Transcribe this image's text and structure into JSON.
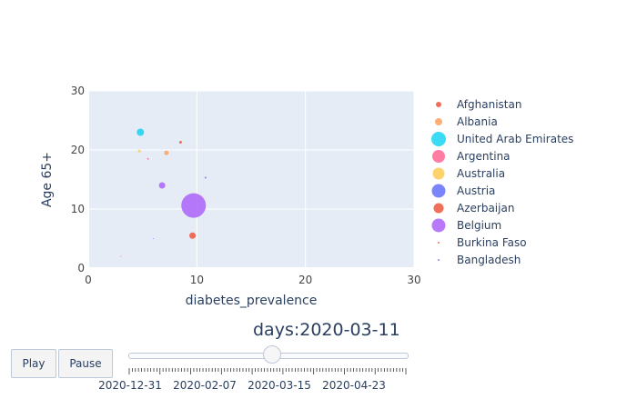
{
  "chart_data": {
    "type": "scatter",
    "xlabel": "diabetes_prevalence",
    "ylabel": "Age 65+",
    "xlim": [
      0,
      30
    ],
    "ylim": [
      0,
      30
    ],
    "x_ticks": [
      0,
      10,
      20,
      30
    ],
    "y_ticks": [
      0,
      10,
      20,
      30
    ],
    "grid": true,
    "legend_position": "right",
    "background_color": "#e5ecf6",
    "series": [
      {
        "name": "Afghanistan",
        "color": "#ef553b",
        "x": 8.5,
        "y": 21.3,
        "size": 3
      },
      {
        "name": "Albania",
        "color": "#ffa15a",
        "x": 7.2,
        "y": 19.5,
        "size": 5
      },
      {
        "name": "United Arab Emirates",
        "color": "#19d3f3",
        "x": 4.8,
        "y": 23.0,
        "size": 8
      },
      {
        "name": "Argentina",
        "color": "#ff6692",
        "x": 5.5,
        "y": 18.5,
        "size": 2
      },
      {
        "name": "Australia",
        "color": "#fecb52",
        "x": 4.7,
        "y": 19.8,
        "size": 3
      },
      {
        "name": "Austria",
        "color": "#636efa",
        "x": 10.8,
        "y": 15.3,
        "size": 2
      },
      {
        "name": "Azerbaijan",
        "color": "#ef553b",
        "x": 9.6,
        "y": 5.5,
        "size": 7
      },
      {
        "name": "Belgium",
        "color": "#ab63fa",
        "x": 9.7,
        "y": 10.6,
        "size": 27
      },
      {
        "name": "Burkina Faso",
        "color": "#ef553b",
        "x": 3.0,
        "y": 2.0,
        "size": 1
      },
      {
        "name": "Bangladesh",
        "color": "#636efa",
        "x": 6.0,
        "y": 5.0,
        "size": 1
      }
    ],
    "extra_points": [
      {
        "series": "Belgium",
        "x": 6.8,
        "y": 14.0,
        "size": 7
      }
    ]
  },
  "animation": {
    "current_prefix": "days:",
    "current_value": "2020-03-11",
    "play_label": "Play",
    "pause_label": "Pause",
    "slider_position": 0.517,
    "step_labels": [
      "2020-12-31",
      "2020-02-07",
      "2020-03-15",
      "2020-04-23"
    ]
  }
}
